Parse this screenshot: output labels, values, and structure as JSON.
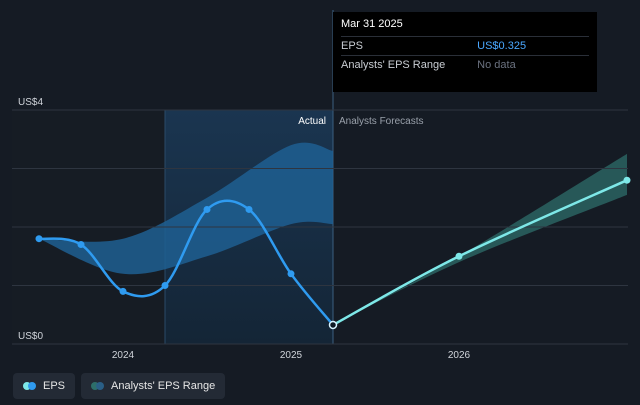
{
  "tooltip": {
    "date": "Mar 31 2025",
    "rows": [
      {
        "label": "EPS",
        "value": "US$0.325"
      },
      {
        "label": "Analysts' EPS Range",
        "value": "No data"
      }
    ]
  },
  "sections": {
    "actual": "Actual",
    "forecast": "Analysts Forecasts"
  },
  "legend": {
    "eps": "EPS",
    "range": "Analysts' EPS Range",
    "eps_color": "#2f9bf0",
    "forecast_color": "#7ee8e8",
    "range_color": "#2d6e6a"
  },
  "chart_data": {
    "type": "line",
    "title": "",
    "xlabel": "",
    "ylabel": "",
    "ylim": [
      0,
      4
    ],
    "ytick_labels": [
      "US$0",
      "US$4"
    ],
    "x_ticks": [
      {
        "x": 2024.0,
        "label": "2024"
      },
      {
        "x": 2025.0,
        "label": "2025"
      },
      {
        "x": 2026.0,
        "label": "2026"
      }
    ],
    "actual_eps": [
      {
        "x": 2023.5,
        "y": 1.8
      },
      {
        "x": 2023.75,
        "y": 1.7
      },
      {
        "x": 2024.0,
        "y": 0.9
      },
      {
        "x": 2024.25,
        "y": 1.0
      },
      {
        "x": 2024.5,
        "y": 2.3
      },
      {
        "x": 2024.75,
        "y": 2.3
      },
      {
        "x": 2025.0,
        "y": 1.2
      },
      {
        "x": 2025.25,
        "y": 0.325
      }
    ],
    "forecast_eps": [
      {
        "x": 2025.25,
        "y": 0.325
      },
      {
        "x": 2026.0,
        "y": 1.5
      },
      {
        "x": 2027.0,
        "y": 2.8
      }
    ],
    "actual_range": {
      "x": [
        2023.5,
        2024.0,
        2024.5,
        2025.0,
        2025.25
      ],
      "upper": [
        1.8,
        1.8,
        2.5,
        3.4,
        3.3
      ],
      "lower": [
        1.8,
        1.2,
        1.5,
        2.05,
        2.05
      ]
    },
    "forecast_range": {
      "x": [
        2025.25,
        2026.0,
        2027.0
      ],
      "upper": [
        0.325,
        1.5,
        3.25
      ],
      "lower": [
        0.325,
        1.4,
        2.55
      ]
    },
    "highlight_span": [
      2024.25,
      2025.25
    ],
    "past_shade_span": [
      2023.5,
      2024.25
    ]
  }
}
